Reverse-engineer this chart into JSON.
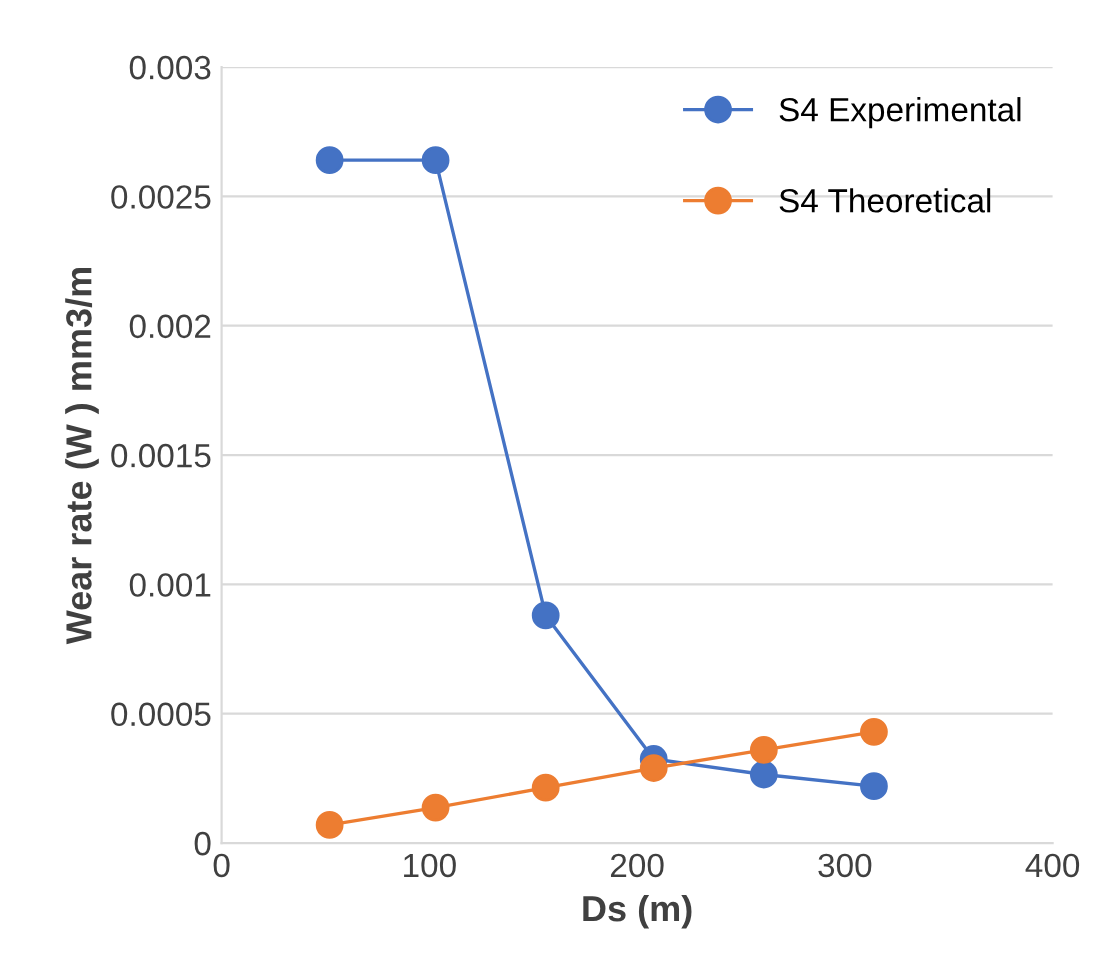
{
  "chart_data": {
    "type": "line",
    "xlabel": "Ds (m)",
    "ylabel": "Wear rate (W ) mm3/m",
    "series": [
      {
        "name": "S4 Experimental",
        "color": "#4472c4",
        "x": [
          52,
          103,
          156,
          208,
          261,
          314
        ],
        "values": [
          0.00264,
          0.00264,
          0.00088,
          0.000325,
          0.000265,
          0.00022
        ]
      },
      {
        "name": "S4 Theoretical",
        "color": "#ed7d31",
        "x": [
          52,
          103,
          156,
          208,
          261,
          314
        ],
        "values": [
          7e-05,
          0.000137,
          0.000214,
          0.00029,
          0.00036,
          0.00043
        ]
      }
    ],
    "xlim": [
      0,
      400
    ],
    "xticks": [
      0,
      100,
      200,
      300,
      400
    ],
    "ylim": [
      0,
      0.003
    ],
    "yticks": [
      0,
      0.0005,
      0.001,
      0.0015,
      0.002,
      0.0025,
      0.003
    ],
    "grid": "y",
    "legend": "top right",
    "marker": "circle",
    "line_style": "solid"
  }
}
